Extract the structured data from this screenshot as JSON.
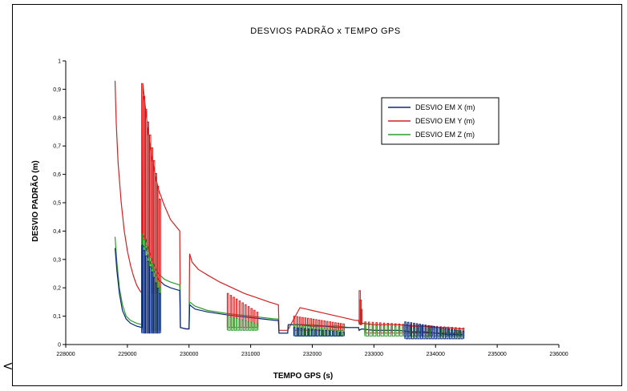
{
  "chart_data": {
    "type": "line",
    "title": "DESVIOS PADRÃO x TEMPO GPS",
    "xlabel": "TEMPO GPS (s)",
    "ylabel": "DESVIO PADRÃO (m)",
    "xlim": [
      228000,
      236000
    ],
    "ylim": [
      0,
      1
    ],
    "xticks": [
      228000,
      229000,
      230000,
      231000,
      232000,
      233000,
      234000,
      235000,
      236000
    ],
    "xtick_labels": [
      "228000",
      "229000",
      "230000",
      "231000",
      "232000",
      "233000",
      "234000",
      "235000",
      "236000"
    ],
    "yticks": [
      0,
      0.1,
      0.2,
      0.3,
      0.4,
      0.5,
      0.6,
      0.7,
      0.8,
      0.9,
      1
    ],
    "ytick_labels": [
      "0",
      "0,1",
      "0,2",
      "0,3",
      "0,4",
      "0,5",
      "0,6",
      "0,7",
      "0,8",
      "0,9",
      "1"
    ],
    "grid": false,
    "legend_position": "top-right",
    "series": [
      {
        "name": "DESVIO EM X (m)",
        "color": "#0b2a7a",
        "x": [
          228800,
          228830,
          228870,
          228920,
          228980,
          229050,
          229150,
          229240,
          229250,
          229300,
          229350,
          229400,
          229450,
          229500,
          229550,
          229600,
          229700,
          229850,
          229860,
          229950,
          230000,
          230010,
          230100,
          230300,
          230600,
          230800,
          231000,
          231200,
          231400,
          231450,
          231460,
          231600,
          231610,
          231800,
          232000,
          232200,
          232400,
          232600,
          232700,
          232750,
          232760,
          232800,
          233000,
          233200,
          233400,
          233600,
          233800,
          234000,
          234200,
          234400,
          234440
        ],
        "y": [
          0.34,
          0.26,
          0.18,
          0.12,
          0.09,
          0.075,
          0.065,
          0.06,
          0.35,
          0.34,
          0.3,
          0.27,
          0.25,
          0.23,
          0.22,
          0.21,
          0.2,
          0.19,
          0.06,
          0.055,
          0.055,
          0.14,
          0.125,
          0.115,
          0.105,
          0.1,
          0.095,
          0.09,
          0.085,
          0.085,
          0.04,
          0.04,
          0.07,
          0.07,
          0.065,
          0.065,
          0.06,
          0.06,
          0.06,
          0.06,
          0.05,
          0.055,
          0.05,
          0.05,
          0.05,
          0.045,
          0.045,
          0.04,
          0.035,
          0.035,
          0.035
        ]
      },
      {
        "name": "DESVIO EM Y (m)",
        "color": "#d42020",
        "x": [
          228800,
          228820,
          228850,
          228900,
          228950,
          229000,
          229050,
          229100,
          229150,
          229200,
          229240,
          229250,
          229280,
          229320,
          229380,
          229450,
          229500,
          229600,
          229700,
          229850,
          229860,
          229950,
          230000,
          230010,
          230050,
          230150,
          230300,
          230500,
          230700,
          230900,
          231100,
          231300,
          231450,
          231460,
          231600,
          231800,
          232000,
          232200,
          232400,
          232600,
          232700,
          232750,
          232760,
          232800,
          233000,
          233200,
          233400,
          233600,
          233800,
          234000,
          234200,
          234400,
          234440
        ],
        "y": [
          0.93,
          0.78,
          0.64,
          0.5,
          0.4,
          0.33,
          0.28,
          0.24,
          0.21,
          0.19,
          0.18,
          0.92,
          0.86,
          0.78,
          0.68,
          0.6,
          0.55,
          0.49,
          0.44,
          0.4,
          0.06,
          0.055,
          0.055,
          0.32,
          0.29,
          0.265,
          0.245,
          0.22,
          0.2,
          0.18,
          0.165,
          0.15,
          0.14,
          0.05,
          0.05,
          0.13,
          0.12,
          0.11,
          0.1,
          0.09,
          0.085,
          0.085,
          0.075,
          0.075,
          0.07,
          0.07,
          0.07,
          0.065,
          0.065,
          0.06,
          0.06,
          0.055,
          0.055
        ]
      },
      {
        "name": "DESVIO EM Z (m)",
        "color": "#2e9a2e",
        "x": [
          228800,
          228830,
          228870,
          228920,
          228980,
          229050,
          229150,
          229240,
          229250,
          229300,
          229350,
          229400,
          229450,
          229500,
          229550,
          229600,
          229700,
          229850,
          229860,
          229950,
          230000,
          230010,
          230100,
          230300,
          230600,
          230800,
          231000,
          231200,
          231400,
          231450,
          231460,
          231600,
          231610,
          231800,
          232000,
          232200,
          232400,
          232600,
          232700,
          232750,
          232760,
          232800,
          233000,
          233200,
          233400,
          233600,
          233800,
          234000,
          234200,
          234400,
          234440
        ],
        "y": [
          0.38,
          0.29,
          0.2,
          0.14,
          0.1,
          0.085,
          0.075,
          0.07,
          0.39,
          0.37,
          0.33,
          0.3,
          0.27,
          0.25,
          0.24,
          0.23,
          0.22,
          0.21,
          0.06,
          0.055,
          0.055,
          0.15,
          0.135,
          0.12,
          0.11,
          0.105,
          0.1,
          0.095,
          0.09,
          0.09,
          0.04,
          0.04,
          0.07,
          0.07,
          0.07,
          0.065,
          0.065,
          0.06,
          0.06,
          0.06,
          0.05,
          0.055,
          0.05,
          0.05,
          0.05,
          0.045,
          0.045,
          0.04,
          0.04,
          0.035,
          0.035
        ]
      }
    ],
    "oscillations": [
      {
        "series": 1,
        "x0": 229230,
        "x1": 229520,
        "lo": 0.18,
        "hi": 0.92,
        "count": 9
      },
      {
        "series": 2,
        "x0": 229230,
        "x1": 229520,
        "lo": 0.05,
        "hi": 0.39,
        "count": 9
      },
      {
        "series": 0,
        "x0": 229230,
        "x1": 229520,
        "lo": 0.04,
        "hi": 0.35,
        "count": 9
      },
      {
        "series": 1,
        "x0": 230620,
        "x1": 231100,
        "lo": 0.06,
        "hi": 0.18,
        "count": 10
      },
      {
        "series": 2,
        "x0": 230620,
        "x1": 231100,
        "lo": 0.05,
        "hi": 0.1,
        "count": 10
      },
      {
        "series": 1,
        "x0": 231700,
        "x1": 232500,
        "lo": 0.05,
        "hi": 0.1,
        "count": 18
      },
      {
        "series": 2,
        "x0": 231700,
        "x1": 232500,
        "lo": 0.03,
        "hi": 0.07,
        "count": 18
      },
      {
        "series": 0,
        "x0": 231700,
        "x1": 232500,
        "lo": 0.03,
        "hi": 0.06,
        "count": 14
      },
      {
        "series": 1,
        "x0": 232760,
        "x1": 232790,
        "lo": 0.07,
        "hi": 0.19,
        "count": 2
      },
      {
        "series": 1,
        "x0": 232850,
        "x1": 234440,
        "lo": 0.04,
        "hi": 0.08,
        "count": 26
      },
      {
        "series": 2,
        "x0": 232850,
        "x1": 234440,
        "lo": 0.03,
        "hi": 0.07,
        "count": 26
      },
      {
        "series": 0,
        "x0": 233500,
        "x1": 234440,
        "lo": 0.02,
        "hi": 0.08,
        "count": 20
      }
    ]
  },
  "corner_mark": "<"
}
